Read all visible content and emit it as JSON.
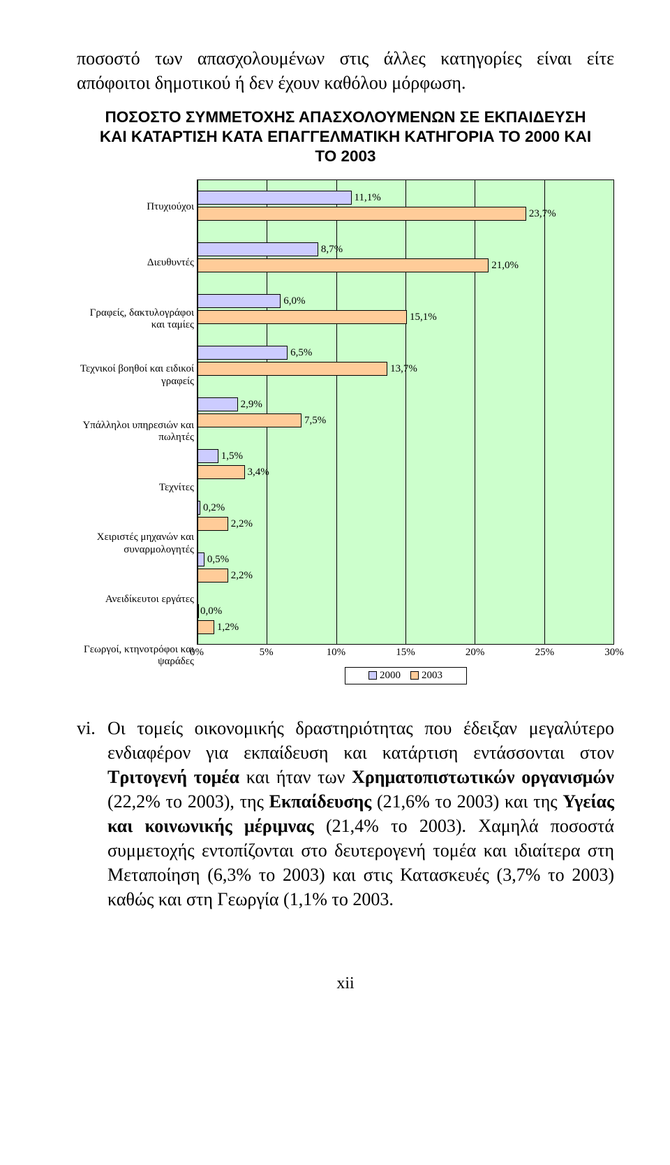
{
  "intro_text": "ποσοστό των απασχολουμένων στις άλλες κατηγορίες είναι είτε απόφοιτοι δημοτικού ή δεν έχουν καθόλου μόρφωση.",
  "chart": {
    "title": "ΠΟΣΟΣΤΟ ΣΥΜΜΕΤΟΧΗΣ ΑΠΑΣΧΟΛΟΥΜΕΝΩΝ ΣΕ ΕΚΠΑΙΔΕΥΣΗ ΚΑΙ ΚΑΤΑΡΤΙΣΗ ΚΑΤΑ ΕΠΑΓΓΕΛΜΑΤΙΚΗ ΚΑΤΗΓΟΡΙΑ ΤΟ 2000 ΚΑΙ ΤΟ 2003",
    "type": "bar",
    "orientation": "horizontal",
    "background_color": "#ccffcc",
    "grid_color": "#000000",
    "xlim": [
      0,
      30
    ],
    "xtick_step": 5,
    "xticks": [
      "0%",
      "5%",
      "10%",
      "15%",
      "20%",
      "25%",
      "30%"
    ],
    "series": [
      {
        "name": "2000",
        "color": "#ccccff"
      },
      {
        "name": "2003",
        "color": "#ffcc99"
      }
    ],
    "categories": [
      {
        "label": "Πτυχιούχοι",
        "v2000": 11.1,
        "v2003": 23.7,
        "l2000": "11,1%",
        "l2003": "23,7%"
      },
      {
        "label": "Διευθυντές",
        "v2000": 8.7,
        "v2003": 21.0,
        "l2000": "8,7%",
        "l2003": "21,0%"
      },
      {
        "label": "Γραφείς, δακτυλογράφοι και ταμίες",
        "v2000": 6.0,
        "v2003": 15.1,
        "l2000": "6,0%",
        "l2003": "15,1%"
      },
      {
        "label": "Τεχνικοί βοηθοί και ειδικοί γραφείς",
        "v2000": 6.5,
        "v2003": 13.7,
        "l2000": "6,5%",
        "l2003": "13,7%"
      },
      {
        "label": "Υπάλληλοι υπηρεσιών και πωλητές",
        "v2000": 2.9,
        "v2003": 7.5,
        "l2000": "2,9%",
        "l2003": "7,5%"
      },
      {
        "label": "Τεχνίτες",
        "v2000": 1.5,
        "v2003": 3.4,
        "l2000": "1,5%",
        "l2003": "3,4%"
      },
      {
        "label": "Χειριστές μηχανών και συναρμολογητές",
        "v2000": 0.2,
        "v2003": 2.2,
        "l2000": "0,2%",
        "l2003": "2,2%"
      },
      {
        "label": "Ανειδίκευτοι εργάτες",
        "v2000": 0.5,
        "v2003": 2.2,
        "l2000": "0,5%",
        "l2003": "2,2%"
      },
      {
        "label": "Γεωργοί, κτηνοτρόφοι και ψαράδες",
        "v2000": 0.0,
        "v2003": 1.2,
        "l2000": "0,0%",
        "l2003": "1,2%"
      }
    ],
    "legend": {
      "s0": "2000",
      "s1": "2003"
    },
    "label_fontsize": 15
  },
  "para": {
    "roman": "vi.",
    "text": "Οι τομείς οικονομικής δραστηριότητας που έδειξαν μεγαλύτερο ενδιαφέρον για εκπαίδευση και κατάρτιση εντάσσονται στον <b>Τριτογενή τομέα</b> και ήταν των <b>Χρηματοπιστωτικών οργανισμών</b> (22,2% το 2003), της <b>Εκπαίδευσης</b> (21,6% το 2003) και της <b>Υγείας και κοινωνικής μέριμνας</b> (21,4% το 2003). Χαμηλά ποσοστά συμμετοχής εντοπίζονται στο δευτερογενή τομέα και ιδιαίτερα στη Μεταποίηση (6,3% το 2003) και στις Κατασκευές (3,7% το 2003) καθώς και στη Γεωργία (1,1% το 2003."
  },
  "page_number": "xii"
}
